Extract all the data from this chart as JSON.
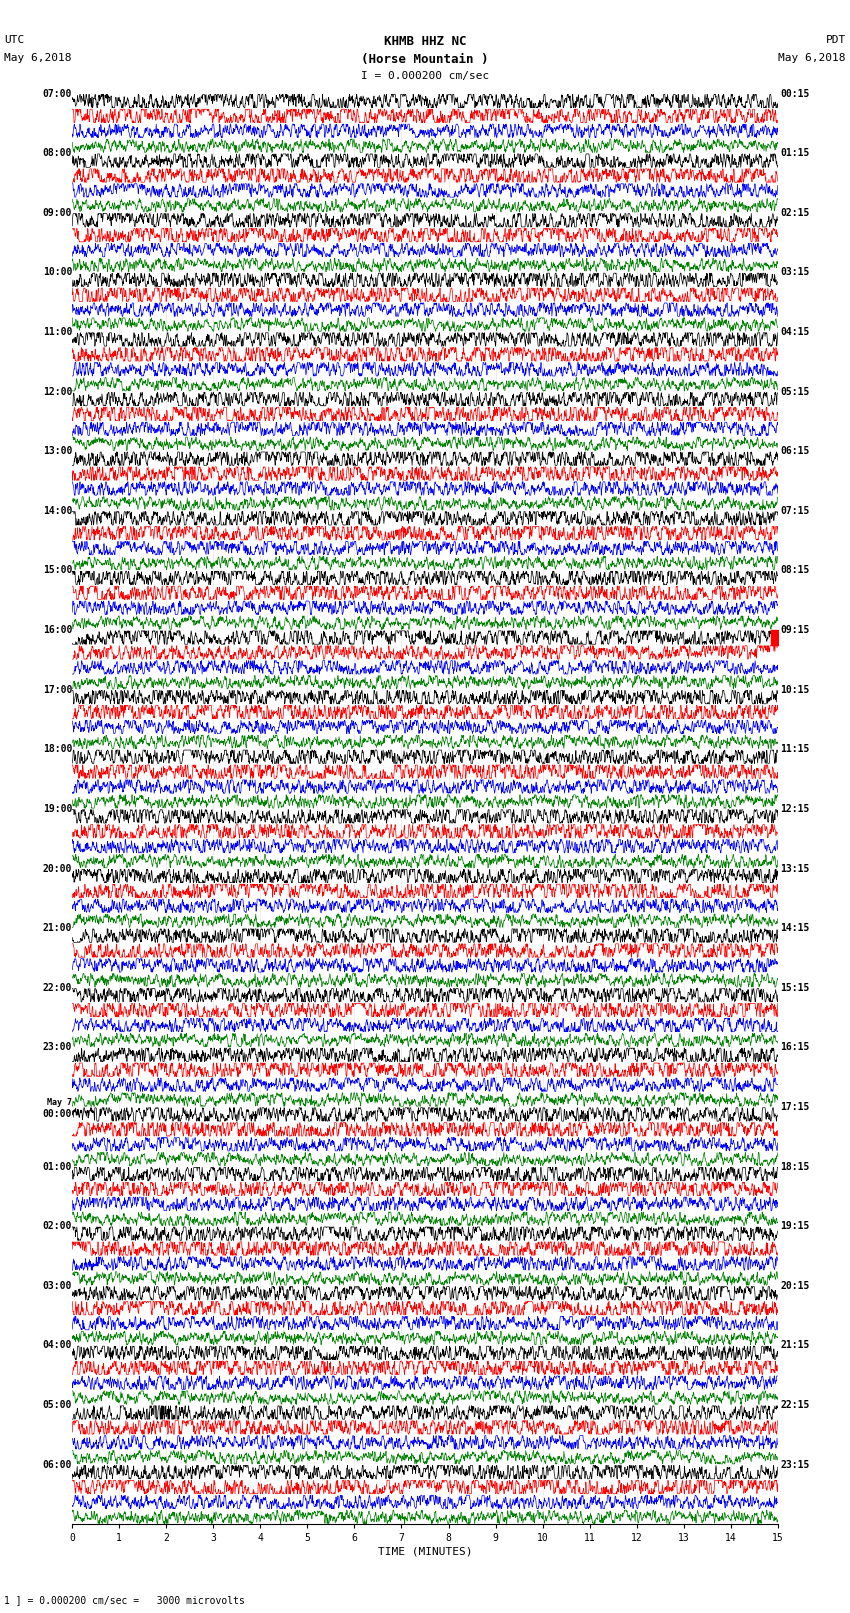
{
  "title_line1": "KHMB HHZ NC",
  "title_line2": "(Horse Mountain )",
  "title_scale": "I = 0.000200 cm/sec",
  "left_header1": "UTC",
  "left_header2": "May 6,2018",
  "right_header1": "PDT",
  "right_header2": "May 6,2018",
  "xlabel": "TIME (MINUTES)",
  "footer": "1 ] = 0.000200 cm/sec =   3000 microvolts",
  "rows": 96,
  "traces_per_row": 4,
  "minutes_per_row": 15,
  "colors": [
    "black",
    "red",
    "blue",
    "green"
  ],
  "bg_color": "#ffffff",
  "left_labels_utc": [
    "07:00",
    "08:00",
    "09:00",
    "10:00",
    "11:00",
    "12:00",
    "13:00",
    "14:00",
    "15:00",
    "16:00",
    "17:00",
    "18:00",
    "19:00",
    "20:00",
    "21:00",
    "22:00",
    "23:00",
    "May 7",
    "00:00",
    "01:00",
    "02:00",
    "03:00",
    "04:00",
    "05:00",
    "06:00"
  ],
  "left_label_rows": [
    0,
    4,
    8,
    12,
    16,
    20,
    24,
    28,
    32,
    36,
    40,
    44,
    48,
    52,
    56,
    60,
    64,
    68,
    68.5,
    72,
    76,
    80,
    84,
    88,
    92
  ],
  "right_labels_pdt": [
    "00:15",
    "01:15",
    "02:15",
    "03:15",
    "04:15",
    "05:15",
    "06:15",
    "07:15",
    "08:15",
    "09:15",
    "10:15",
    "11:15",
    "12:15",
    "13:15",
    "14:15",
    "15:15",
    "16:15",
    "17:15",
    "18:15",
    "19:15",
    "20:15",
    "21:15",
    "22:15",
    "23:15"
  ],
  "right_label_rows": [
    0,
    4,
    8,
    12,
    16,
    20,
    24,
    28,
    32,
    36,
    40,
    44,
    48,
    52,
    56,
    60,
    64,
    68,
    72,
    76,
    80,
    84,
    88,
    92
  ],
  "x_tick_positions": [
    0,
    1,
    2,
    3,
    4,
    5,
    6,
    7,
    8,
    9,
    10,
    11,
    12,
    13,
    14,
    15
  ],
  "figwidth": 8.5,
  "figheight": 16.13,
  "dpi": 100,
  "noise_seeds": [
    42
  ],
  "amp_black": 0.35,
  "amp_red": 0.38,
  "amp_blue": 0.28,
  "amp_green": 0.22
}
